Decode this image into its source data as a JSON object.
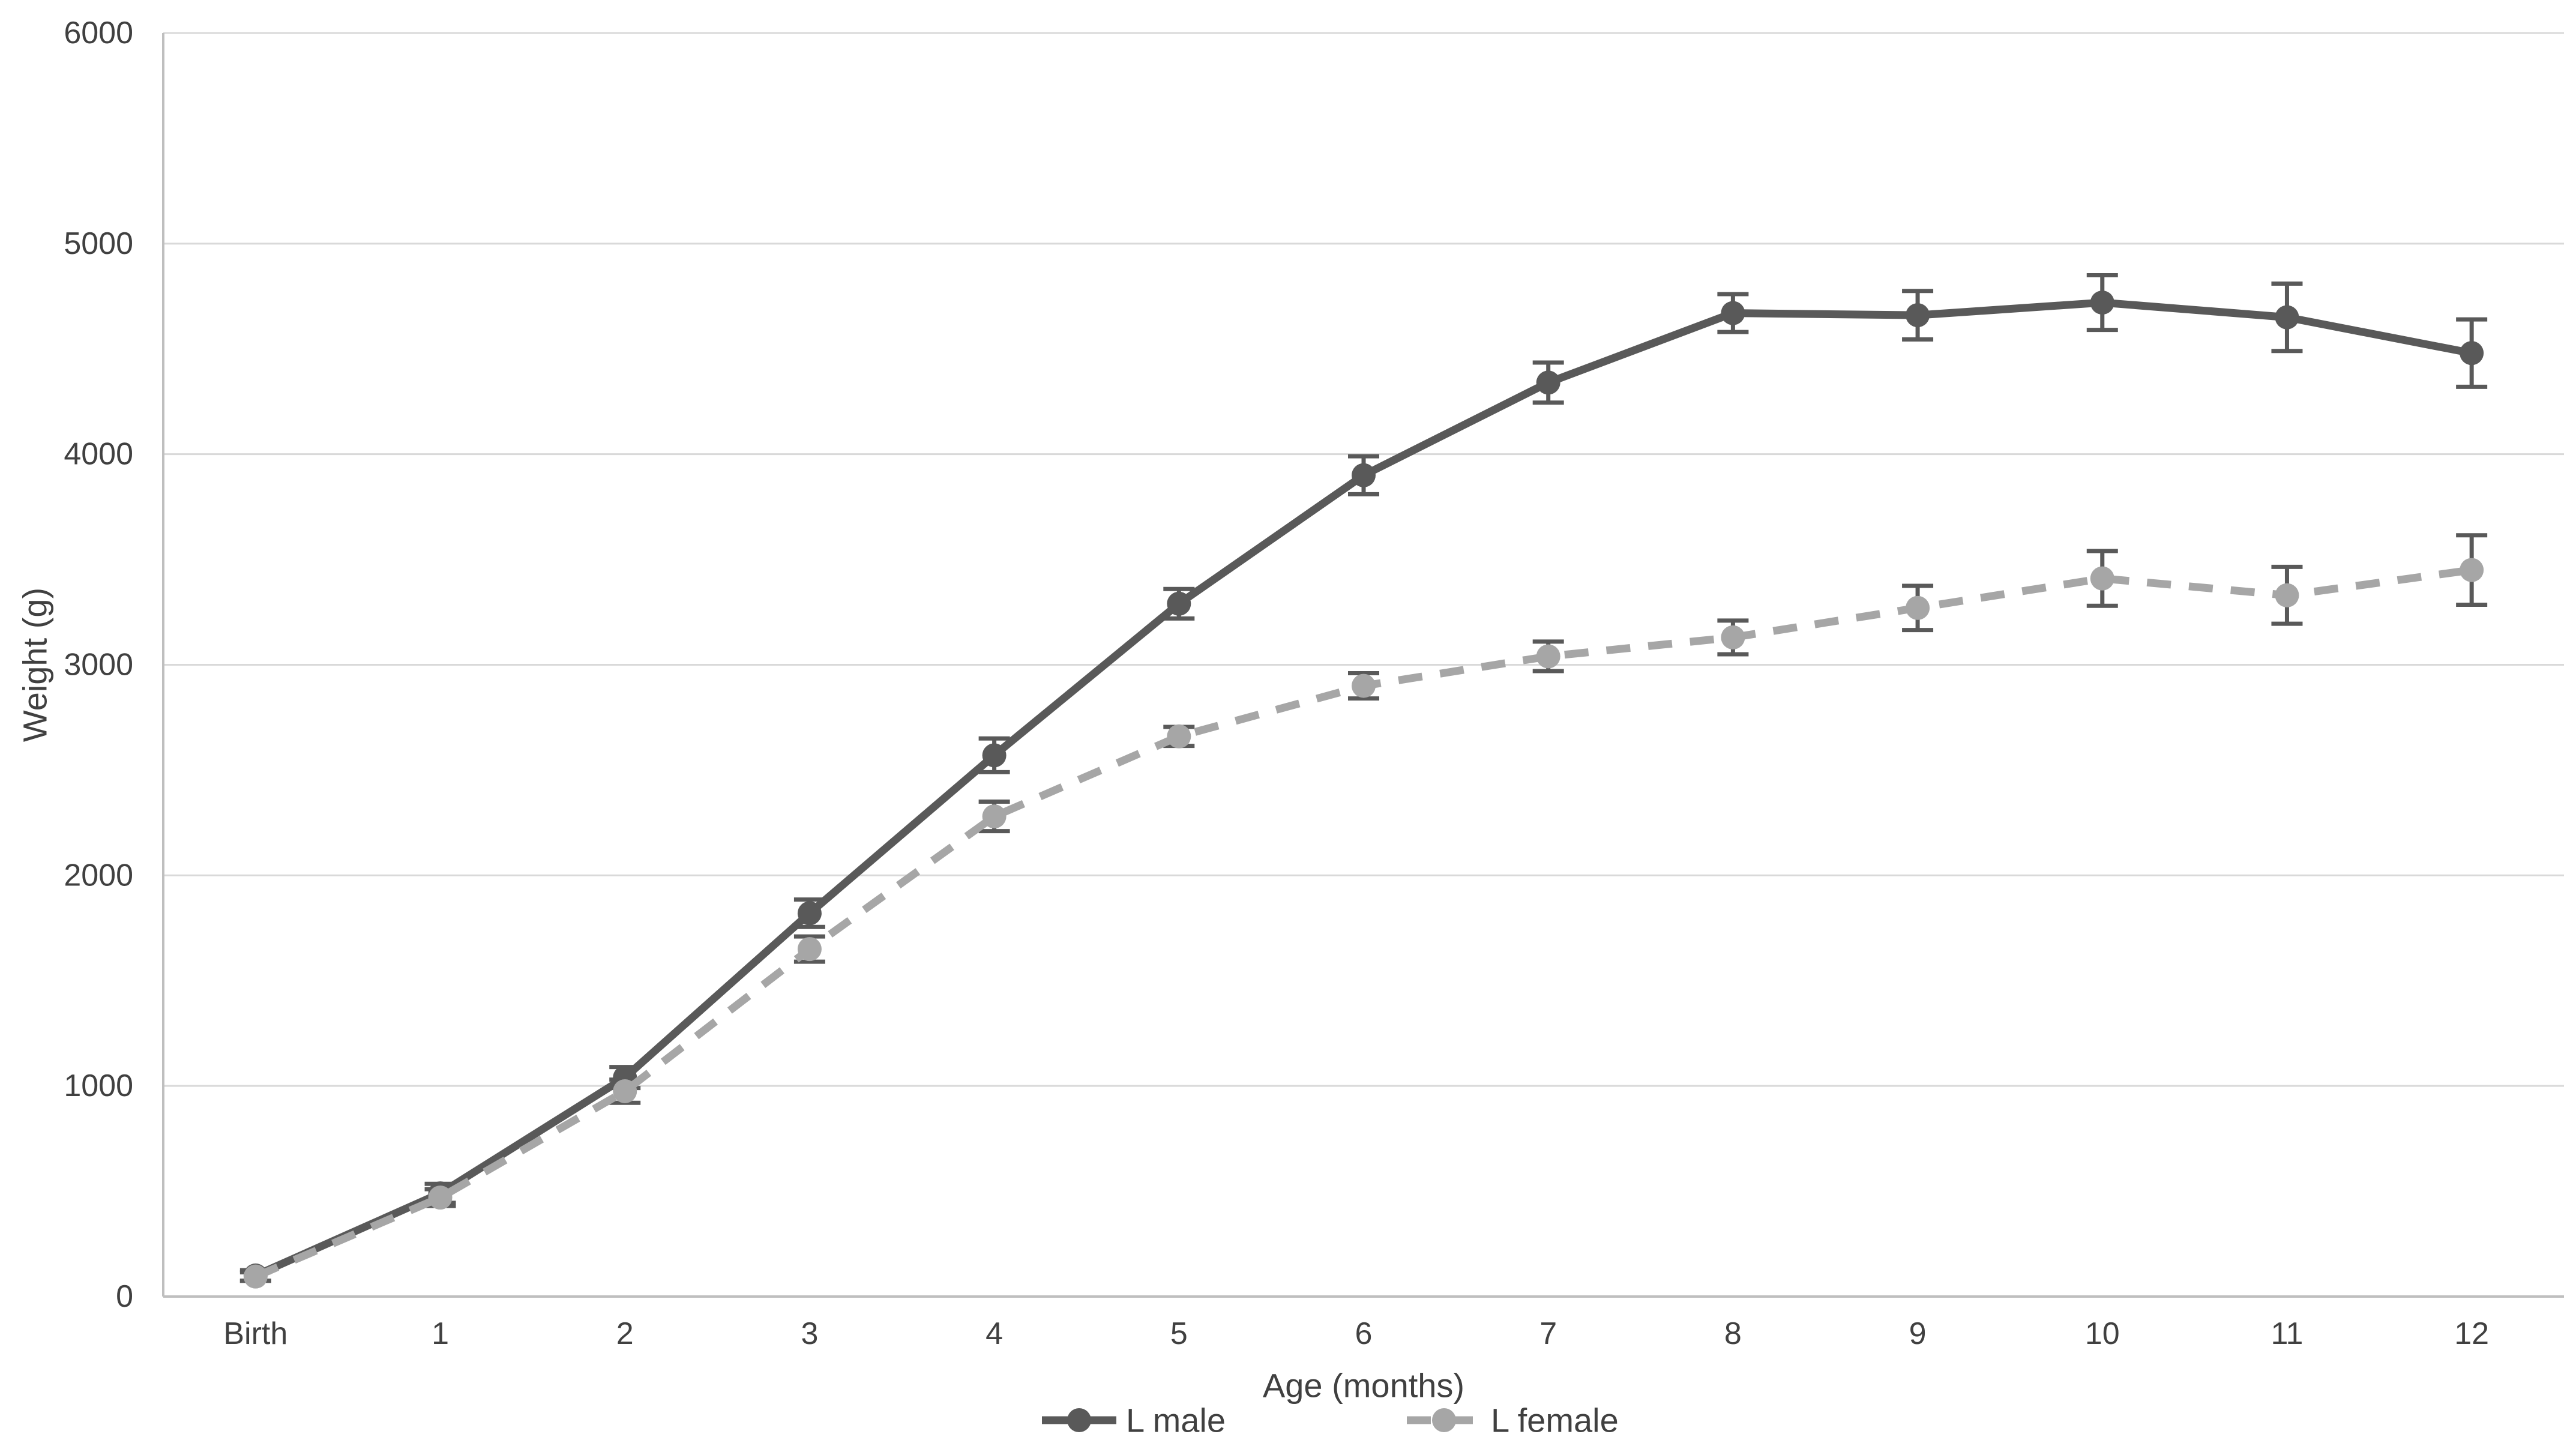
{
  "palette": {
    "male_series": "#595959",
    "female_series": "#a6a6a6",
    "error_bar": "#595959",
    "gridline": "#d9d9d9",
    "axis_line": "#bfbfbf",
    "text": "#404040",
    "background": "#ffffff"
  },
  "chart_data": {
    "type": "line",
    "title": "",
    "xlabel": "Age (months)",
    "ylabel": "Weight (g)",
    "categories": [
      "Birth",
      "1",
      "2",
      "3",
      "4",
      "5",
      "6",
      "7",
      "8",
      "9",
      "10",
      "11",
      "12"
    ],
    "yticks": [
      "0",
      "1000",
      "2000",
      "3000",
      "4000",
      "5000",
      "6000"
    ],
    "ylim": [
      0,
      6000
    ],
    "ytick_step": 1000,
    "grid": "horizontal-only",
    "legend_position": "bottom-center",
    "error_bars": true,
    "series": [
      {
        "name": "L male",
        "slug": "l-male",
        "color": "#595959",
        "line_style": "solid",
        "marker": "circle",
        "values": [
          100,
          490,
          1040,
          1820,
          2570,
          3290,
          3900,
          4340,
          4670,
          4660,
          4720,
          4650,
          4480
        ],
        "errors": [
          25,
          45,
          50,
          65,
          80,
          70,
          90,
          95,
          90,
          115,
          130,
          160,
          160
        ]
      },
      {
        "name": "L female",
        "slug": "l-female",
        "color": "#a6a6a6",
        "line_style": "dashed",
        "marker": "circle",
        "values": [
          95,
          470,
          975,
          1650,
          2280,
          2660,
          2900,
          3040,
          3130,
          3270,
          3410,
          3330,
          3450
        ],
        "errors": [
          20,
          40,
          55,
          60,
          70,
          45,
          60,
          70,
          80,
          105,
          130,
          135,
          165
        ]
      }
    ]
  }
}
